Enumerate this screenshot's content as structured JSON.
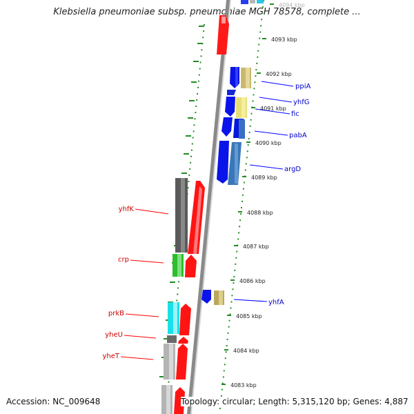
{
  "title": "Klebsiella pneumoniae subsp. pneumoniae MGH 78578, complete ...",
  "footer": {
    "accession": "Accession: NC_009648",
    "topology": "Topology: circular; Length: 5,315,120 bp; Genes: 4,887"
  },
  "colors": {
    "forward_strand_gene": "#ff0000",
    "reverse_strand_gene": "#0000ff",
    "forward_label": "#cc0000",
    "reverse_label": "#0000cc",
    "backbone": "#777777",
    "ruler": "#228b22"
  },
  "kbp_labels": [
    "4094 kbp",
    "4093 kbp",
    "4092 kbp",
    "4091 kbp",
    "4090 kbp",
    "4089 kbp",
    "4088 kbp",
    "4087 kbp",
    "4086 kbp",
    "4085 kbp",
    "4084 kbp",
    "4083 kbp"
  ],
  "genes_reverse": [
    "ppiA",
    "yhfG",
    "fic",
    "pabA",
    "argD",
    "yhfA"
  ],
  "genes_forward": [
    "yhfK",
    "crp",
    "prkB",
    "yheU",
    "yheT"
  ]
}
